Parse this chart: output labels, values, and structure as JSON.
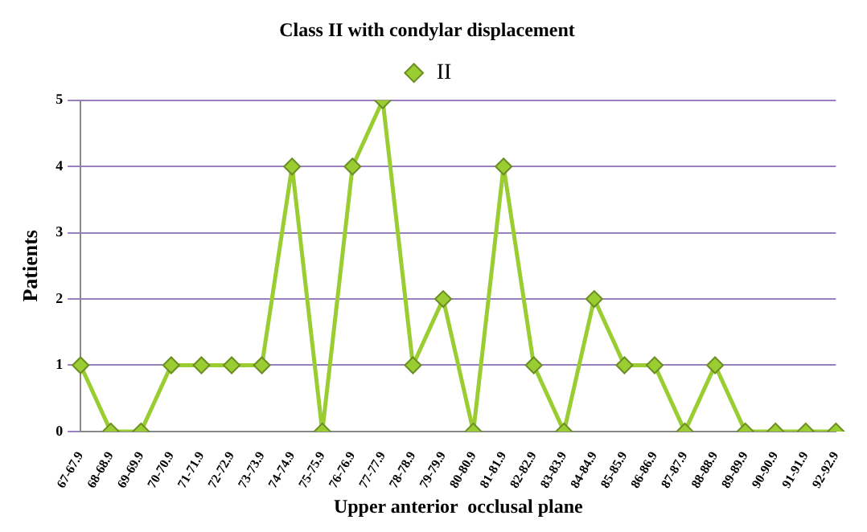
{
  "chart_data": {
    "type": "line",
    "title": "Class II with condylar displacement",
    "xlabel": "Upper anterior  occlusal plane",
    "ylabel": "Patients",
    "categories": [
      "67-67.9",
      "68-68.9",
      "69-69.9",
      "70-70.9",
      "71-71.9",
      "72-72.9",
      "73-73.9",
      "74-74.9",
      "75-75.9",
      "76-76.9",
      "77-77.9",
      "78-78.9",
      "79-79.9",
      "80-80.9",
      "81-81.9",
      "82-82.9",
      "83-83.9",
      "84-84.9",
      "85-85.9",
      "86-86.9",
      "87-87.9",
      "88-88.9",
      "89-89.9",
      "90-90.9",
      "91-91.9",
      "92-92.9"
    ],
    "series": [
      {
        "name": "II",
        "color": "#9acd32",
        "values": [
          1,
          0,
          0,
          1,
          1,
          1,
          1,
          4,
          0,
          4,
          5,
          1,
          2,
          0,
          4,
          1,
          0,
          2,
          1,
          1,
          0,
          1,
          0,
          0,
          0,
          0
        ]
      }
    ],
    "ylim": [
      0,
      5
    ],
    "yticks": [
      0,
      1,
      2,
      3,
      4,
      5
    ],
    "grid": "y",
    "legend": "top",
    "marker": "diamond",
    "line_style": "solid"
  }
}
